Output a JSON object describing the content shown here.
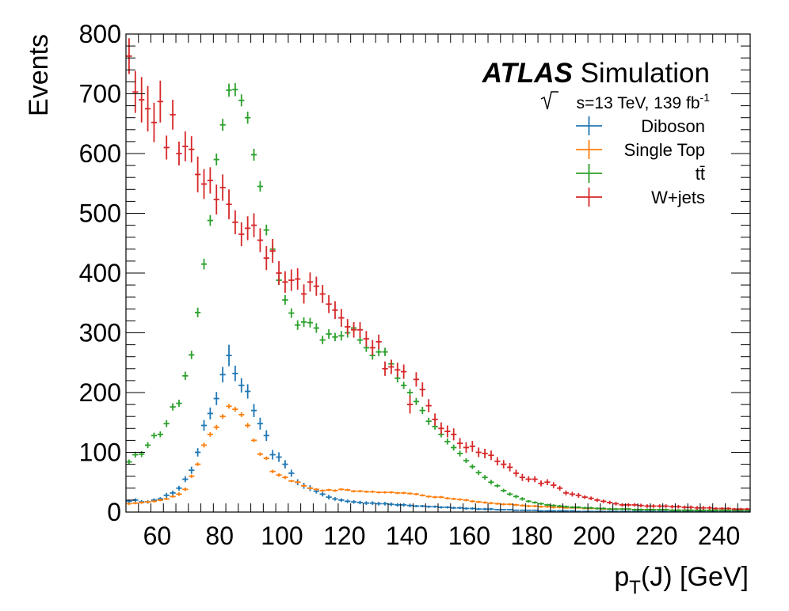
{
  "chart_data": {
    "type": "scatter",
    "title": "",
    "experiment": "ATLAS",
    "label_suffix": "Simulation",
    "energy_label_prefix": "s=13 TeV, 139 fb",
    "energy_label_sup": "-1",
    "xlabel_main": "p",
    "xlabel_sub": "T",
    "xlabel_rest": "(J) [GeV]",
    "ylabel": "Events",
    "xlim": [
      50,
      250
    ],
    "ylim": [
      0,
      800
    ],
    "xticks": [
      60,
      80,
      100,
      120,
      140,
      160,
      180,
      200,
      220,
      240
    ],
    "yticks": [
      0,
      100,
      200,
      300,
      400,
      500,
      600,
      700,
      800
    ],
    "bin_width": 2,
    "x": [
      51,
      53,
      55,
      57,
      59,
      61,
      63,
      65,
      67,
      69,
      71,
      73,
      75,
      77,
      79,
      81,
      83,
      85,
      87,
      89,
      91,
      93,
      95,
      97,
      99,
      101,
      103,
      105,
      107,
      109,
      111,
      113,
      115,
      117,
      119,
      121,
      123,
      125,
      127,
      129,
      131,
      133,
      135,
      137,
      139,
      141,
      143,
      145,
      147,
      149,
      151,
      153,
      155,
      157,
      159,
      161,
      163,
      165,
      167,
      169,
      171,
      173,
      175,
      177,
      179,
      181,
      183,
      185,
      187,
      189,
      191,
      193,
      195,
      197,
      199,
      201,
      203,
      205,
      207,
      209,
      211,
      213,
      215,
      217,
      219,
      221,
      223,
      225,
      227,
      229,
      231,
      233,
      235,
      237,
      239,
      241,
      243,
      245,
      247,
      249
    ],
    "legend_position": "top-right",
    "series": [
      {
        "name": "Diboson",
        "color": "#1f77b4",
        "values": [
          18,
          20,
          17,
          17,
          20,
          22,
          28,
          32,
          40,
          55,
          70,
          100,
          145,
          165,
          190,
          230,
          262,
          232,
          212,
          202,
          170,
          148,
          128,
          96,
          92,
          80,
          65,
          50,
          44,
          40,
          35,
          30,
          25,
          22,
          20,
          18,
          17,
          16,
          15,
          15,
          14,
          14,
          13,
          12,
          12,
          11,
          10,
          10,
          9,
          9,
          8,
          8,
          7,
          7,
          6,
          6,
          5,
          5,
          5,
          4,
          4,
          4,
          3,
          3,
          3,
          3,
          2,
          2,
          2,
          2,
          2,
          2,
          1,
          1,
          1,
          1,
          1,
          1,
          1,
          1,
          1,
          1,
          1,
          1,
          1,
          1,
          1,
          1,
          1,
          1,
          1,
          1,
          1,
          1,
          1,
          1,
          1,
          1,
          1,
          1
        ],
        "errors": [
          3,
          3,
          3,
          3,
          3,
          3,
          4,
          4,
          4,
          5,
          6,
          7,
          9,
          10,
          11,
          13,
          18,
          13,
          12,
          12,
          11,
          10,
          9,
          8,
          8,
          7,
          6,
          5,
          5,
          5,
          4,
          4,
          4,
          3,
          3,
          3,
          3,
          3,
          3,
          3,
          3,
          3,
          3,
          3,
          3,
          3,
          2,
          2,
          2,
          2,
          2,
          2,
          2,
          2,
          2,
          2,
          2,
          2,
          2,
          1,
          1,
          1,
          1,
          1,
          1,
          1,
          1,
          1,
          1,
          1,
          1,
          1,
          1,
          1,
          1,
          1,
          1,
          1,
          1,
          1,
          1,
          1,
          1,
          1,
          1,
          1,
          1,
          1,
          1,
          1,
          1,
          1,
          1,
          1,
          1,
          1,
          1,
          1,
          1,
          1
        ]
      },
      {
        "name": "Single Top",
        "color": "#ff7f0e",
        "values": [
          14,
          15,
          16,
          17,
          18,
          20,
          22,
          26,
          30,
          38,
          60,
          80,
          112,
          130,
          142,
          160,
          177,
          172,
          163,
          145,
          120,
          97,
          90,
          68,
          62,
          58,
          52,
          50,
          44,
          40,
          38,
          36,
          37,
          36,
          38,
          37,
          35,
          35,
          34,
          34,
          33,
          33,
          33,
          32,
          32,
          31,
          30,
          28,
          26,
          25,
          25,
          23,
          22,
          21,
          20,
          18,
          17,
          16,
          15,
          14,
          13,
          13,
          12,
          11,
          10,
          10,
          9,
          9,
          8,
          8,
          7,
          7,
          7,
          6,
          6,
          6,
          5,
          5,
          5,
          5,
          5,
          4,
          4,
          4,
          4,
          4,
          4,
          3,
          3,
          3,
          3,
          3,
          3,
          3,
          3,
          3,
          3,
          3,
          3,
          3
        ],
        "errors": [
          2,
          2,
          2,
          2,
          2,
          2,
          2,
          2,
          3,
          3,
          3,
          3,
          4,
          4,
          4,
          4,
          4,
          4,
          4,
          4,
          3,
          3,
          3,
          3,
          3,
          3,
          2,
          2,
          2,
          2,
          2,
          2,
          2,
          2,
          2,
          2,
          2,
          2,
          2,
          2,
          2,
          2,
          2,
          2,
          2,
          2,
          2,
          2,
          2,
          2,
          2,
          2,
          2,
          2,
          2,
          2,
          2,
          2,
          2,
          2,
          2,
          2,
          2,
          2,
          2,
          2,
          2,
          2,
          2,
          2,
          1,
          1,
          1,
          1,
          1,
          1,
          1,
          1,
          1,
          1,
          1,
          1,
          1,
          1,
          1,
          1,
          1,
          1,
          1,
          1,
          1,
          1,
          1,
          1,
          1,
          1,
          1,
          1,
          1,
          1
        ]
      },
      {
        "name": "tt̄",
        "color": "#2ca02c",
        "values": [
          84,
          96,
          97,
          112,
          128,
          130,
          148,
          176,
          182,
          228,
          263,
          334,
          415,
          488,
          590,
          648,
          706,
          707,
          689,
          660,
          598,
          545,
          472,
          440,
          388,
          355,
          333,
          313,
          318,
          317,
          308,
          288,
          298,
          293,
          295,
          300,
          308,
          288,
          275,
          262,
          268,
          268,
          248,
          224,
          212,
          200,
          185,
          170,
          152,
          143,
          130,
          118,
          108,
          98,
          86,
          76,
          66,
          58,
          50,
          44,
          36,
          30,
          26,
          22,
          18,
          16,
          14,
          12,
          11,
          10,
          9,
          8,
          8,
          7,
          7,
          6,
          6,
          5,
          5,
          5,
          5,
          4,
          4,
          4,
          4,
          4,
          4,
          3,
          3,
          3,
          3,
          3,
          3,
          3,
          3,
          3,
          3,
          3,
          3,
          3
        ],
        "errors": [
          4,
          5,
          5,
          5,
          5,
          5,
          6,
          6,
          6,
          7,
          7,
          8,
          9,
          9,
          10,
          10,
          11,
          11,
          10,
          10,
          10,
          9,
          9,
          9,
          8,
          8,
          8,
          8,
          8,
          8,
          8,
          7,
          8,
          7,
          8,
          8,
          8,
          7,
          7,
          7,
          7,
          7,
          7,
          7,
          6,
          6,
          6,
          6,
          6,
          5,
          5,
          5,
          5,
          5,
          4,
          4,
          4,
          4,
          4,
          3,
          3,
          3,
          3,
          3,
          2,
          2,
          2,
          2,
          2,
          2,
          2,
          2,
          2,
          2,
          2,
          2,
          2,
          2,
          2,
          2,
          2,
          2,
          2,
          2,
          2,
          2,
          2,
          2,
          2,
          2,
          2,
          2,
          2,
          2,
          2,
          2,
          2,
          2,
          2,
          2
        ]
      },
      {
        "name": "W+jets",
        "color": "#d62728",
        "values": [
          763,
          703,
          690,
          675,
          652,
          687,
          610,
          665,
          600,
          612,
          607,
          565,
          549,
          555,
          523,
          543,
          515,
          485,
          465,
          475,
          480,
          455,
          425,
          437,
          400,
          385,
          388,
          390,
          365,
          385,
          378,
          365,
          348,
          338,
          325,
          310,
          305,
          305,
          290,
          275,
          285,
          240,
          243,
          238,
          235,
          180,
          222,
          205,
          178,
          155,
          140,
          135,
          130,
          115,
          108,
          110,
          100,
          98,
          95,
          85,
          80,
          75,
          65,
          58,
          55,
          55,
          48,
          50,
          45,
          40,
          32,
          30,
          28,
          25,
          23,
          20,
          18,
          16,
          14,
          12,
          12,
          12,
          11,
          10,
          10,
          10,
          10,
          9,
          9,
          8,
          8,
          7,
          7,
          7,
          6,
          6,
          6,
          5,
          5,
          5
        ],
        "errors": [
          30,
          35,
          38,
          38,
          33,
          35,
          20,
          25,
          20,
          25,
          22,
          30,
          25,
          22,
          25,
          22,
          25,
          20,
          20,
          20,
          20,
          20,
          20,
          20,
          20,
          18,
          18,
          18,
          16,
          16,
          16,
          15,
          15,
          15,
          15,
          13,
          13,
          13,
          13,
          13,
          12,
          12,
          12,
          12,
          12,
          15,
          12,
          12,
          11,
          10,
          10,
          10,
          10,
          9,
          9,
          9,
          8,
          8,
          8,
          7,
          7,
          7,
          6,
          6,
          5,
          5,
          5,
          5,
          5,
          4,
          4,
          4,
          4,
          3,
          3,
          3,
          3,
          3,
          3,
          3,
          3,
          3,
          3,
          3,
          3,
          3,
          3,
          3,
          3,
          3,
          3,
          3,
          3,
          3,
          2,
          2,
          2,
          2,
          2,
          2
        ]
      }
    ]
  }
}
